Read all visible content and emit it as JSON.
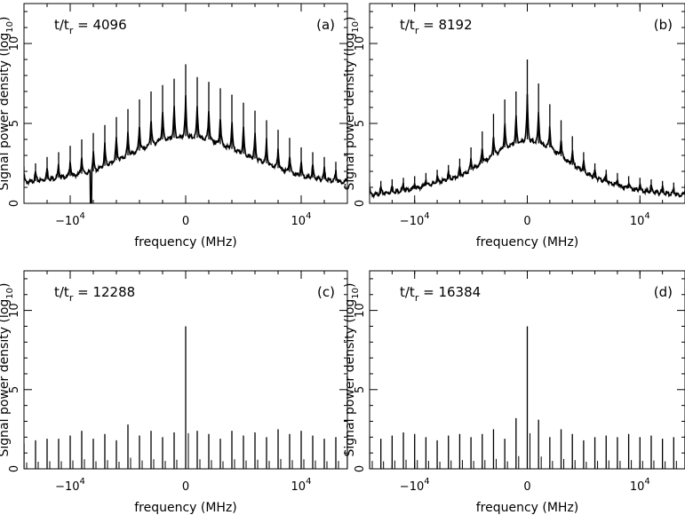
{
  "chart_data": [
    {
      "id": "a",
      "type": "line",
      "panel_label": "(a)",
      "annotation": {
        "prefix": "t/t",
        "sub": "r",
        "value": "=  4096"
      },
      "xlabel": "frequency (MHz)",
      "ylabel": "Signal power density (log",
      "ylabel_sub": "10",
      "ylabel_suffix": ")",
      "xlim": [
        -14000,
        14000
      ],
      "ylim": [
        0,
        12.5
      ],
      "xticks": [
        {
          "value": -10000,
          "base": "−10",
          "exp": "4"
        },
        {
          "value": 0,
          "label": "0"
        },
        {
          "value": 10000,
          "base": "10",
          "exp": "4"
        }
      ],
      "yticks": [
        0,
        5,
        10
      ],
      "spacing": 1000,
      "peaks": [
        {
          "x": -14000,
          "y": 2.3
        },
        {
          "x": -13000,
          "y": 2.5
        },
        {
          "x": -12000,
          "y": 2.9
        },
        {
          "x": -11000,
          "y": 3.2
        },
        {
          "x": -10000,
          "y": 3.6
        },
        {
          "x": -9000,
          "y": 4.0
        },
        {
          "x": -8000,
          "y": 4.4
        },
        {
          "x": -7000,
          "y": 4.9
        },
        {
          "x": -6000,
          "y": 5.4
        },
        {
          "x": -5000,
          "y": 5.9
        },
        {
          "x": -4000,
          "y": 6.5
        },
        {
          "x": -3000,
          "y": 7.0
        },
        {
          "x": -2000,
          "y": 7.4
        },
        {
          "x": -1000,
          "y": 7.8
        },
        {
          "x": 0,
          "y": 8.7
        },
        {
          "x": 1000,
          "y": 7.9
        },
        {
          "x": 2000,
          "y": 7.6
        },
        {
          "x": 3000,
          "y": 7.2
        },
        {
          "x": 4000,
          "y": 6.8
        },
        {
          "x": 5000,
          "y": 6.3
        },
        {
          "x": 6000,
          "y": 5.8
        },
        {
          "x": 7000,
          "y": 5.2
        },
        {
          "x": 8000,
          "y": 4.6
        },
        {
          "x": 9000,
          "y": 4.1
        },
        {
          "x": 10000,
          "y": 3.5
        },
        {
          "x": 11000,
          "y": 3.2
        },
        {
          "x": 12000,
          "y": 2.9
        },
        {
          "x": 13000,
          "y": 2.6
        },
        {
          "x": 14000,
          "y": 2.3
        }
      ],
      "baseline": [
        {
          "x": -14000,
          "y": 1.3
        },
        {
          "x": -10000,
          "y": 1.7
        },
        {
          "x": -8000,
          "y": 2.0
        },
        {
          "x": -6000,
          "y": 2.7
        },
        {
          "x": -4000,
          "y": 3.3
        },
        {
          "x": -2000,
          "y": 4.0
        },
        {
          "x": 0,
          "y": 4.2
        },
        {
          "x": 2000,
          "y": 4.0
        },
        {
          "x": 4000,
          "y": 3.4
        },
        {
          "x": 6000,
          "y": 2.8
        },
        {
          "x": 8000,
          "y": 2.2
        },
        {
          "x": 10000,
          "y": 1.7
        },
        {
          "x": 14000,
          "y": 1.3
        }
      ],
      "dip": {
        "x": -8200,
        "y": 0
      }
    },
    {
      "id": "b",
      "type": "line",
      "panel_label": "(b)",
      "annotation": {
        "prefix": "t/t",
        "sub": "r",
        "value": "=  8192"
      },
      "xlabel": "frequency (MHz)",
      "ylabel": "Signal power density (log",
      "ylabel_sub": "10",
      "ylabel_suffix": ")",
      "xlim": [
        -14000,
        14000
      ],
      "ylim": [
        0,
        12.5
      ],
      "xticks": [
        {
          "value": -10000,
          "base": "−10",
          "exp": "4"
        },
        {
          "value": 0,
          "label": "0"
        },
        {
          "value": 10000,
          "base": "10",
          "exp": "4"
        }
      ],
      "yticks": [
        0,
        5,
        10
      ],
      "spacing": 1000,
      "peaks": [
        {
          "x": -14000,
          "y": 1.3
        },
        {
          "x": -13000,
          "y": 1.4
        },
        {
          "x": -12000,
          "y": 1.5
        },
        {
          "x": -11000,
          "y": 1.6
        },
        {
          "x": -10000,
          "y": 1.7
        },
        {
          "x": -9000,
          "y": 1.9
        },
        {
          "x": -8000,
          "y": 2.1
        },
        {
          "x": -7000,
          "y": 2.4
        },
        {
          "x": -6000,
          "y": 2.8
        },
        {
          "x": -5000,
          "y": 3.5
        },
        {
          "x": -4000,
          "y": 4.5
        },
        {
          "x": -3000,
          "y": 5.6
        },
        {
          "x": -2000,
          "y": 6.5
        },
        {
          "x": -1000,
          "y": 7.0
        },
        {
          "x": 0,
          "y": 9.0
        },
        {
          "x": 1000,
          "y": 7.5
        },
        {
          "x": 2000,
          "y": 6.2
        },
        {
          "x": 3000,
          "y": 5.2
        },
        {
          "x": 4000,
          "y": 4.2
        },
        {
          "x": 5000,
          "y": 3.2
        },
        {
          "x": 6000,
          "y": 2.5
        },
        {
          "x": 7000,
          "y": 2.1
        },
        {
          "x": 8000,
          "y": 1.9
        },
        {
          "x": 9000,
          "y": 1.7
        },
        {
          "x": 10000,
          "y": 1.6
        },
        {
          "x": 11000,
          "y": 1.5
        },
        {
          "x": 12000,
          "y": 1.4
        },
        {
          "x": 13000,
          "y": 1.3
        },
        {
          "x": 14000,
          "y": 1.2
        }
      ],
      "baseline": [
        {
          "x": -14000,
          "y": 0.5
        },
        {
          "x": -10000,
          "y": 0.9
        },
        {
          "x": -8000,
          "y": 1.3
        },
        {
          "x": -6000,
          "y": 1.7
        },
        {
          "x": -4000,
          "y": 2.5
        },
        {
          "x": -2000,
          "y": 3.5
        },
        {
          "x": 0,
          "y": 4.0
        },
        {
          "x": 2000,
          "y": 3.5
        },
        {
          "x": 4000,
          "y": 2.4
        },
        {
          "x": 6000,
          "y": 1.6
        },
        {
          "x": 8000,
          "y": 1.1
        },
        {
          "x": 10000,
          "y": 0.8
        },
        {
          "x": 14000,
          "y": 0.5
        }
      ]
    },
    {
      "id": "c",
      "type": "line",
      "panel_label": "(c)",
      "annotation": {
        "prefix": "t/t",
        "sub": "r",
        "value": "= 12288"
      },
      "xlabel": "frequency (MHz)",
      "ylabel": "Signal power density (log",
      "ylabel_sub": "10",
      "ylabel_suffix": ")",
      "xlim": [
        -14000,
        14000
      ],
      "ylim": [
        0,
        12.5
      ],
      "xticks": [
        {
          "value": -10000,
          "base": "−10",
          "exp": "4"
        },
        {
          "value": 0,
          "label": "0"
        },
        {
          "value": 10000,
          "base": "10",
          "exp": "4"
        }
      ],
      "yticks": [
        0,
        5,
        10
      ],
      "spacing": 1000,
      "peaks": [
        {
          "x": -14000,
          "y": 1.6
        },
        {
          "x": -13000,
          "y": 1.8
        },
        {
          "x": -12000,
          "y": 1.9
        },
        {
          "x": -11000,
          "y": 1.9
        },
        {
          "x": -10000,
          "y": 2.1
        },
        {
          "x": -9000,
          "y": 2.4
        },
        {
          "x": -8000,
          "y": 1.9
        },
        {
          "x": -7000,
          "y": 2.2
        },
        {
          "x": -6000,
          "y": 1.8
        },
        {
          "x": -5000,
          "y": 2.8
        },
        {
          "x": -4000,
          "y": 2.1
        },
        {
          "x": -3000,
          "y": 2.4
        },
        {
          "x": -2000,
          "y": 2.0
        },
        {
          "x": -1000,
          "y": 2.3
        },
        {
          "x": 0,
          "y": 9.0
        },
        {
          "x": 1000,
          "y": 2.4
        },
        {
          "x": 2000,
          "y": 2.2
        },
        {
          "x": 3000,
          "y": 1.9
        },
        {
          "x": 4000,
          "y": 2.4
        },
        {
          "x": 5000,
          "y": 2.1
        },
        {
          "x": 6000,
          "y": 2.3
        },
        {
          "x": 7000,
          "y": 2.0
        },
        {
          "x": 8000,
          "y": 2.5
        },
        {
          "x": 9000,
          "y": 2.2
        },
        {
          "x": 10000,
          "y": 2.4
        },
        {
          "x": 11000,
          "y": 2.1
        },
        {
          "x": 12000,
          "y": 1.9
        },
        {
          "x": 13000,
          "y": 2.0
        },
        {
          "x": 14000,
          "y": 1.8
        }
      ],
      "baseline": []
    },
    {
      "id": "d",
      "type": "line",
      "panel_label": "(d)",
      "annotation": {
        "prefix": "t/t",
        "sub": "r",
        "value": "= 16384"
      },
      "xlabel": "frequency (MHz)",
      "ylabel": "Signal power density (log",
      "ylabel_sub": "10",
      "ylabel_suffix": ")",
      "xlim": [
        -14000,
        14000
      ],
      "ylim": [
        0,
        12.5
      ],
      "xticks": [
        {
          "value": -10000,
          "base": "−10",
          "exp": "4"
        },
        {
          "value": 0,
          "label": "0"
        },
        {
          "value": 10000,
          "base": "10",
          "exp": "4"
        }
      ],
      "yticks": [
        0,
        5,
        10
      ],
      "spacing": 1000,
      "peaks": [
        {
          "x": -14000,
          "y": 2.0
        },
        {
          "x": -13000,
          "y": 1.9
        },
        {
          "x": -12000,
          "y": 2.1
        },
        {
          "x": -11000,
          "y": 2.3
        },
        {
          "x": -10000,
          "y": 2.2
        },
        {
          "x": -9000,
          "y": 2.0
        },
        {
          "x": -8000,
          "y": 1.8
        },
        {
          "x": -7000,
          "y": 2.1
        },
        {
          "x": -6000,
          "y": 2.2
        },
        {
          "x": -5000,
          "y": 2.0
        },
        {
          "x": -4000,
          "y": 2.2
        },
        {
          "x": -3000,
          "y": 2.5
        },
        {
          "x": -2000,
          "y": 1.9
        },
        {
          "x": -1000,
          "y": 3.2
        },
        {
          "x": 0,
          "y": 9.0
        },
        {
          "x": 1000,
          "y": 3.1
        },
        {
          "x": 2000,
          "y": 2.0
        },
        {
          "x": 3000,
          "y": 2.5
        },
        {
          "x": 4000,
          "y": 2.2
        },
        {
          "x": 5000,
          "y": 1.8
        },
        {
          "x": 6000,
          "y": 2.0
        },
        {
          "x": 7000,
          "y": 2.1
        },
        {
          "x": 8000,
          "y": 2.0
        },
        {
          "x": 9000,
          "y": 2.2
        },
        {
          "x": 10000,
          "y": 2.0
        },
        {
          "x": 11000,
          "y": 2.1
        },
        {
          "x": 12000,
          "y": 1.9
        },
        {
          "x": 13000,
          "y": 2.0
        },
        {
          "x": 14000,
          "y": 2.1
        }
      ],
      "baseline": []
    }
  ]
}
